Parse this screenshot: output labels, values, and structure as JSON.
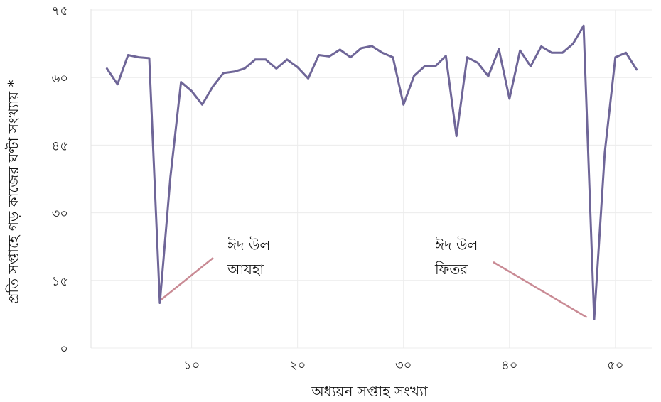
{
  "chart_data": {
    "type": "line",
    "title": "",
    "xlabel": "অধ্যয়ন সপ্তাহ সংখ্যা",
    "ylabel": "প্রতি সপ্তাহে গড় কাজের ঘণ্টা সংখ্যায় *",
    "xlim": [
      0.5,
      53.5
    ],
    "ylim": [
      0,
      75
    ],
    "grid": true,
    "legend": "none",
    "x_ticks": [
      {
        "value": 10,
        "label": "১০"
      },
      {
        "value": 20,
        "label": "২০"
      },
      {
        "value": 30,
        "label": "৩০"
      },
      {
        "value": 40,
        "label": "৪০"
      },
      {
        "value": 50,
        "label": "৫০"
      }
    ],
    "y_ticks": [
      {
        "value": 0,
        "label": "০"
      },
      {
        "value": 15,
        "label": "১৫"
      },
      {
        "value": 30,
        "label": "৩০"
      },
      {
        "value": 45,
        "label": "৪৫"
      },
      {
        "value": 60,
        "label": "৬০"
      },
      {
        "value": 75,
        "label": "৭৫"
      }
    ],
    "series": [
      {
        "color": "#6f6698",
        "x": [
          2,
          3,
          4,
          5,
          6,
          7,
          8,
          9,
          10,
          11,
          12,
          13,
          14,
          15,
          16,
          17,
          18,
          19,
          20,
          21,
          22,
          23,
          24,
          25,
          26,
          27,
          28,
          29,
          30,
          31,
          32,
          33,
          34,
          35,
          36,
          37,
          38,
          39,
          40,
          41,
          42,
          43,
          44,
          45,
          46,
          47,
          48,
          49,
          50,
          51,
          52
        ],
        "y": [
          62,
          58.5,
          65,
          64.5,
          64.3,
          10,
          38,
          59,
          57,
          54,
          58,
          61,
          61.3,
          62,
          64,
          64,
          62,
          64,
          62.3,
          59.8,
          65,
          64.7,
          66.2,
          64.5,
          66.5,
          67,
          65.5,
          64.5,
          54,
          60.4,
          62.5,
          62.5,
          64.8,
          47,
          64.5,
          63.3,
          60.3,
          66.3,
          55.3,
          66,
          62.5,
          66.9,
          65.5,
          65.5,
          67.5,
          71.5,
          6.4,
          43.4,
          64.5,
          65.5,
          61.8
        ]
      }
    ],
    "annotations": [
      {
        "lines": [
          "ঈদ উল",
          "আযহা"
        ],
        "point_x": 7,
        "point_y": 10.5,
        "color": "#c98a94"
      },
      {
        "lines": [
          "ঈদ উল",
          "ফিতর"
        ],
        "point_x": 47.3,
        "point_y": 6.8,
        "color": "#c98a94"
      }
    ]
  }
}
